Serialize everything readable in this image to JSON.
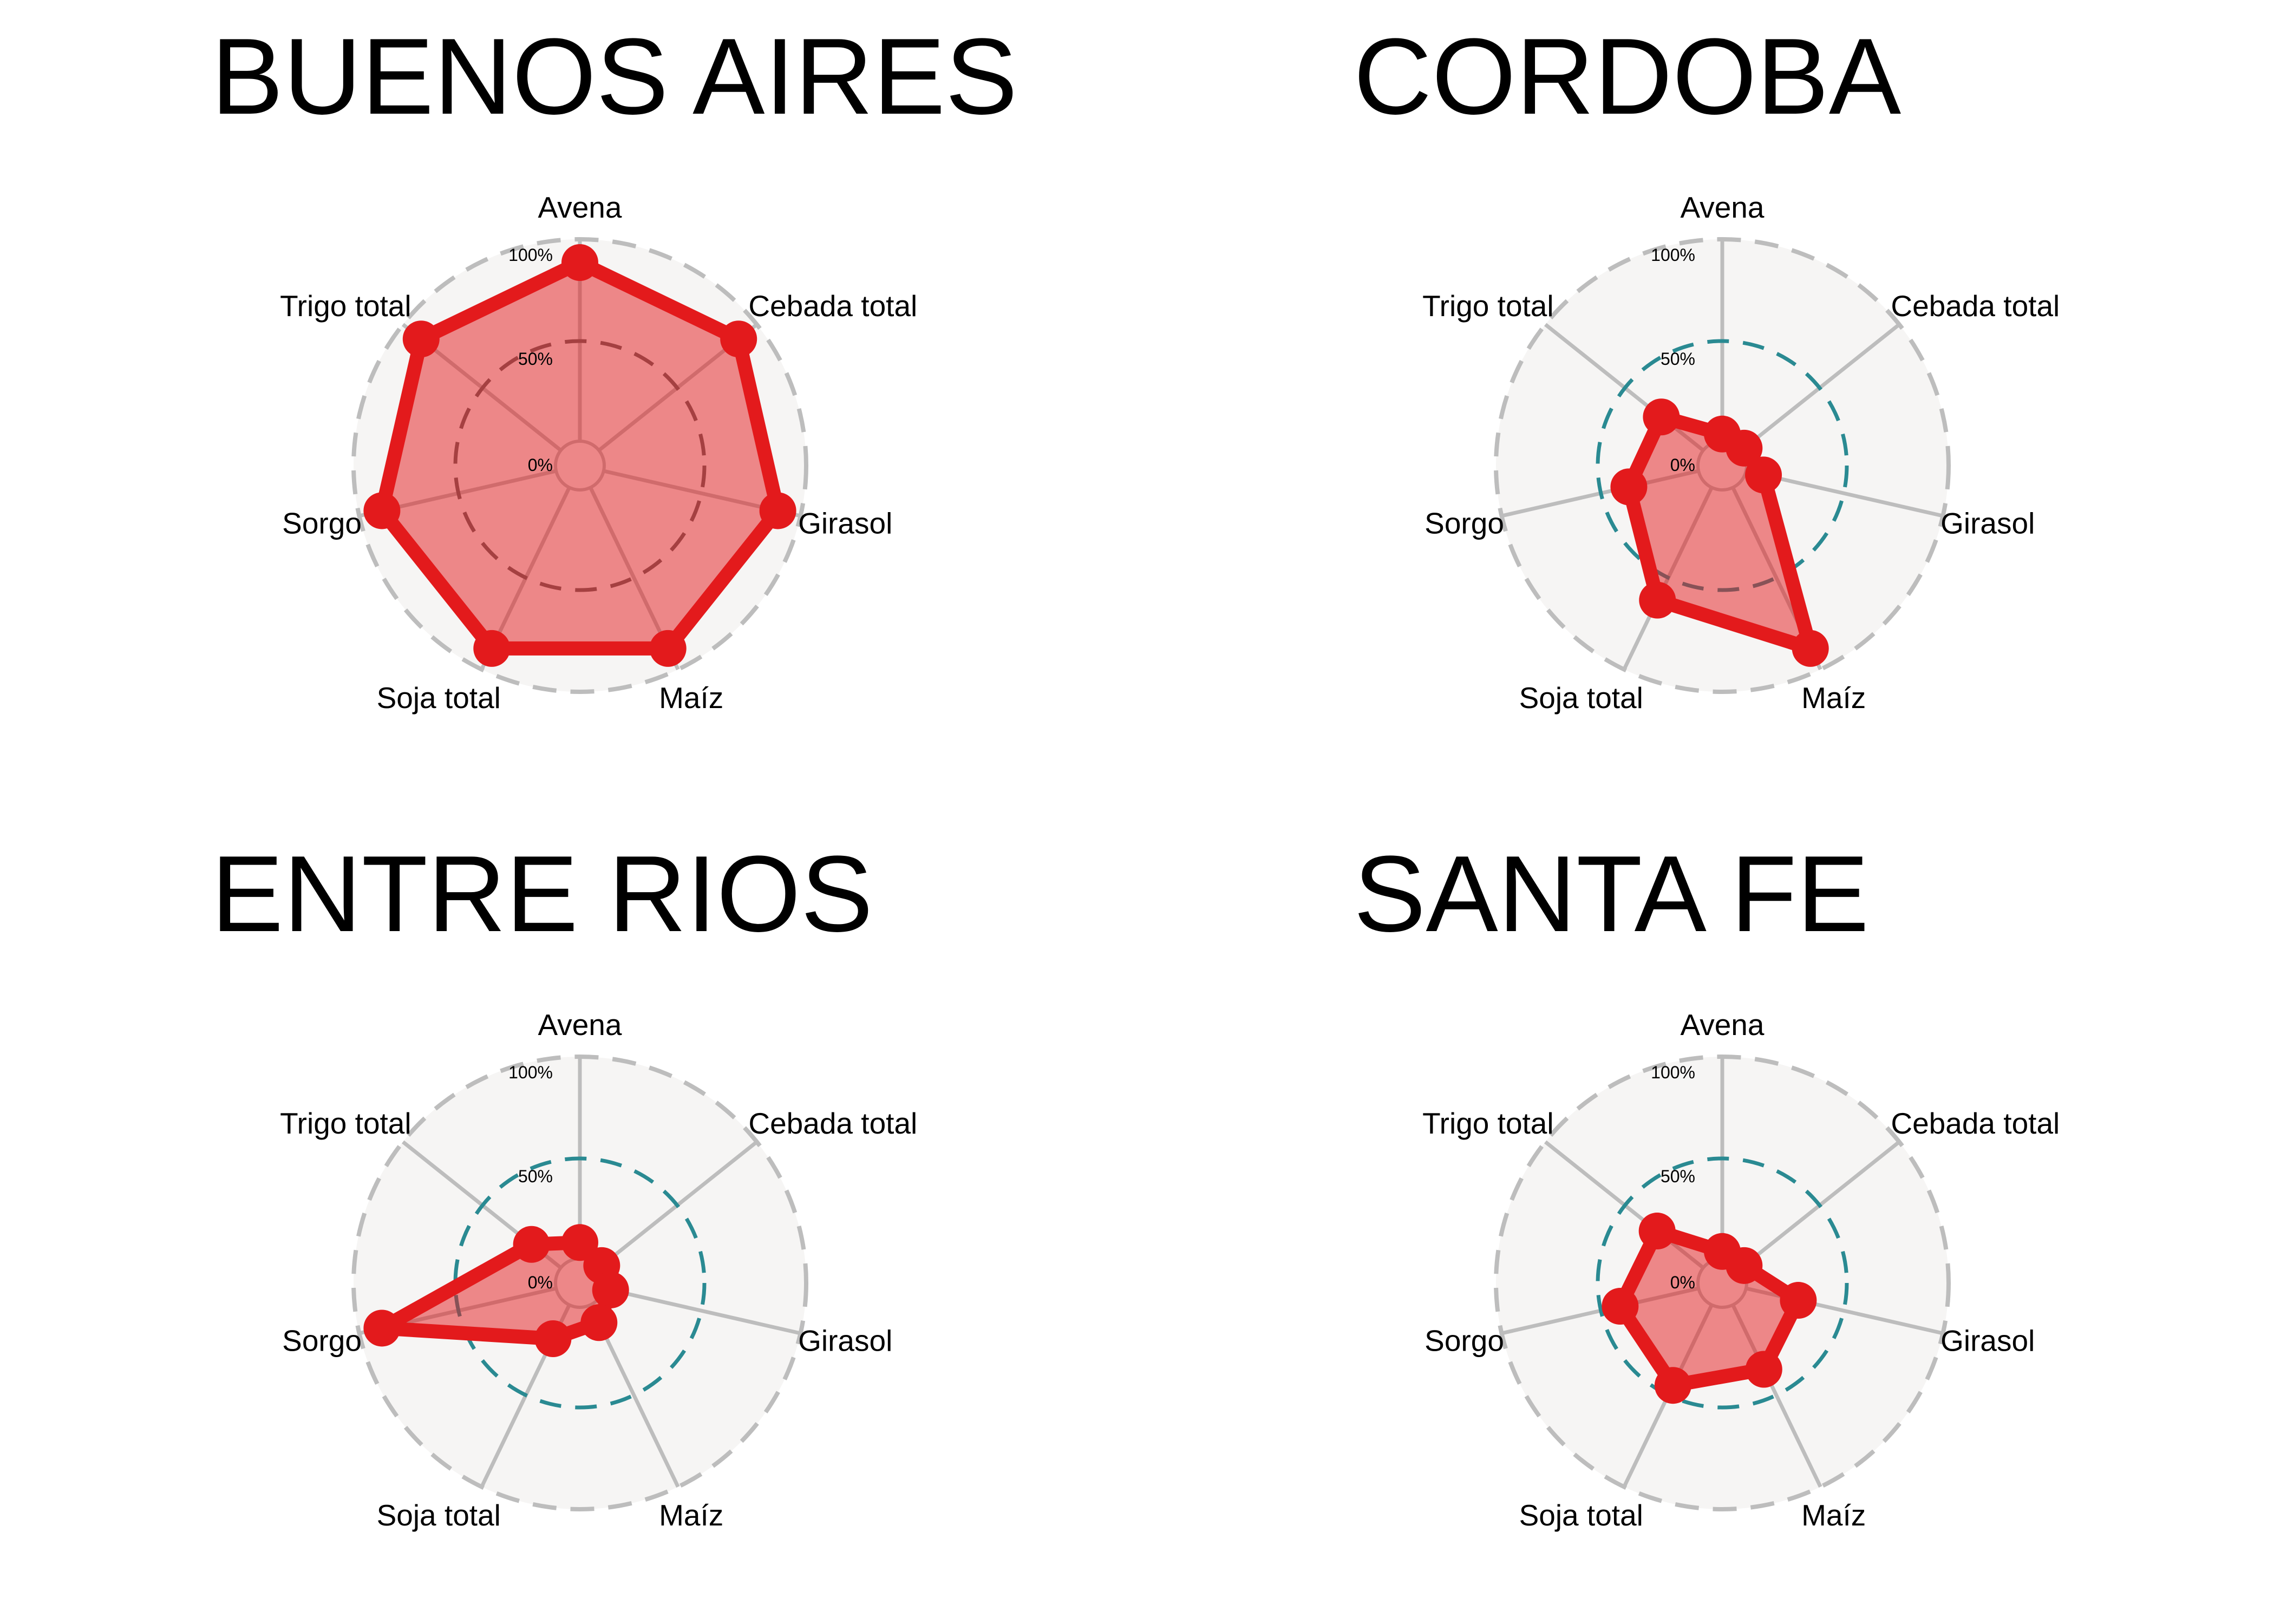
{
  "chart_data": [
    {
      "type": "radar",
      "title": "BUENOS AIRES",
      "categories": [
        "Avena",
        "Cebada total",
        "Girasol",
        "Maíz",
        "Soja total",
        "Sorgo",
        "Trigo total"
      ],
      "values": [
        100,
        100,
        100,
        100,
        100,
        100,
        100
      ],
      "range": [
        0,
        100
      ],
      "grid_labels": [
        "100%",
        "50%",
        "0%"
      ],
      "grid_color": "#666666"
    },
    {
      "type": "radar",
      "title": "CORDOBA",
      "categories": [
        "Avena",
        "Cebada total",
        "Girasol",
        "Maíz",
        "Soja total",
        "Sorgo",
        "Trigo total"
      ],
      "values": [
        4,
        2,
        10,
        100,
        70,
        40,
        30
      ],
      "range": [
        0,
        100
      ],
      "grid_labels": [
        "100%",
        "50%",
        "0%"
      ],
      "grid_color": "#2a8a92"
    },
    {
      "type": "radar",
      "title": "ENTRE RIOS",
      "categories": [
        "Avena",
        "Cebada total",
        "Girasol",
        "Maíz",
        "Soja total",
        "Sorgo",
        "Trigo total"
      ],
      "values": [
        9,
        2,
        4,
        11,
        21,
        100,
        21
      ],
      "range": [
        0,
        100
      ],
      "grid_labels": [
        "100%",
        "50%",
        "0%"
      ],
      "grid_color": "#2a8a92"
    },
    {
      "type": "radar",
      "title": "SANTA FE",
      "categories": [
        "Avena",
        "Cebada total",
        "Girasol",
        "Maíz",
        "Soja total",
        "Sorgo",
        "Trigo total"
      ],
      "values": [
        4,
        2,
        30,
        40,
        50,
        45,
        33
      ],
      "range": [
        0,
        100
      ],
      "grid_labels": [
        "100%",
        "50%",
        "0%"
      ],
      "grid_color": "#2a8a92"
    }
  ],
  "colors": {
    "series": "#e31a1c",
    "fill": "#e31a1c",
    "panel_bg": "#f6f5f4",
    "outer_ring": "#bdbdbd",
    "spokes": "#bdbdbd"
  }
}
